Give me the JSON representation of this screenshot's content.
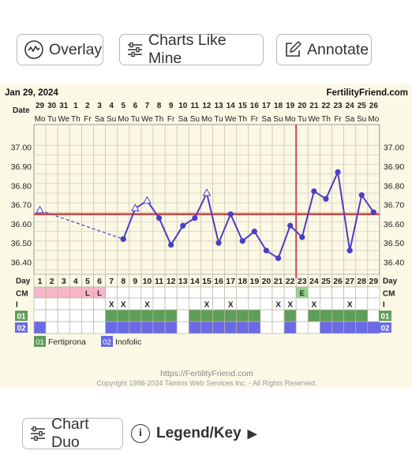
{
  "toolbar": {
    "overlay_label": "Overlay",
    "charts_like_mine_label": "Charts Like Mine",
    "annotate_label": "Annotate"
  },
  "chart": {
    "date_label": "Jan 29, 2024",
    "brand": "FertilityFriend.com",
    "row_date_label": "Date",
    "dates": [
      "29",
      "30",
      "31",
      "1",
      "2",
      "3",
      "4",
      "5",
      "6",
      "7",
      "8",
      "9",
      "10",
      "11",
      "12",
      "13",
      "14",
      "15",
      "16",
      "17",
      "18",
      "19",
      "20",
      "21",
      "22",
      "23",
      "24",
      "25",
      "26"
    ],
    "weekdays": [
      "Mo",
      "Tu",
      "We",
      "Th",
      "Fr",
      "Sa",
      "Su",
      "Mo",
      "Tu",
      "We",
      "Th",
      "Fr",
      "Sa",
      "Su",
      "Mo",
      "Tu",
      "We",
      "Th",
      "Fr",
      "Sa",
      "Su",
      "Mo",
      "Tu",
      "We",
      "Th",
      "Fr",
      "Sa",
      "Su",
      "Mo"
    ],
    "temp_ticks": [
      "37.00",
      "36.90",
      "36.80",
      "36.70",
      "36.60",
      "36.50",
      "36.40"
    ],
    "temp_range": [
      36.34,
      37.04
    ],
    "coverline": 36.65,
    "ovulation_day": 23,
    "temps": [
      36.67,
      null,
      null,
      null,
      null,
      null,
      null,
      36.52,
      36.68,
      36.72,
      36.63,
      36.49,
      36.59,
      36.63,
      36.76,
      36.5,
      36.65,
      36.51,
      36.56,
      36.46,
      36.42,
      36.59,
      36.53,
      36.77,
      36.73,
      36.87,
      36.46,
      36.75,
      36.66
    ],
    "temp_markers": [
      "triangle",
      "",
      "",
      "",
      "",
      "",
      "",
      "dot",
      "triangle",
      "triangle",
      "dot",
      "dot",
      "dot",
      "dot",
      "triangle",
      "dot",
      "dot",
      "dot",
      "dot",
      "dot",
      "dot",
      "dot",
      "dot",
      "dot",
      "dot",
      "dot",
      "dot",
      "dot",
      "dot"
    ],
    "row_day_label": "Day",
    "days": [
      "1",
      "2",
      "3",
      "4",
      "5",
      "6",
      "7",
      "8",
      "9",
      "10",
      "11",
      "12",
      "13",
      "14",
      "15",
      "16",
      "17",
      "18",
      "19",
      "20",
      "21",
      "22",
      "23",
      "24",
      "25",
      "26",
      "27",
      "28",
      "29"
    ],
    "row_cm_label": "CM",
    "cm": [
      "",
      "",
      "",
      "",
      "L",
      "L",
      "",
      "",
      "",
      "",
      "",
      "",
      "",
      "",
      "",
      "",
      "",
      "",
      "",
      "",
      "",
      "",
      "E",
      "",
      "",
      "",
      "",
      "",
      ""
    ],
    "row_i_label": "I",
    "intercourse": [
      "",
      "",
      "",
      "",
      "",
      "",
      "X",
      "X",
      "",
      "X",
      "",
      "",
      "",
      "",
      "X",
      "",
      "X",
      "",
      "",
      "",
      "X",
      "X",
      "",
      "X",
      "",
      "",
      "X",
      "",
      ""
    ],
    "row_01_label": "01",
    "row_02_label": "02",
    "med01": [
      0,
      0,
      0,
      0,
      0,
      0,
      1,
      1,
      1,
      1,
      1,
      1,
      0,
      1,
      1,
      1,
      1,
      1,
      1,
      0,
      0,
      1,
      0,
      1,
      1,
      1,
      1,
      1,
      0
    ],
    "med02": [
      1,
      0,
      0,
      0,
      0,
      0,
      1,
      1,
      1,
      1,
      1,
      1,
      0,
      1,
      1,
      1,
      1,
      1,
      1,
      0,
      0,
      1,
      0,
      0,
      1,
      1,
      1,
      1,
      1
    ],
    "legend": [
      {
        "code": "01",
        "name": "Fertiprona"
      },
      {
        "code": "02",
        "name": "Inofolic"
      }
    ],
    "footer_url": "https://FertilityFriend.com",
    "copyright": "Copyright 1998-2024 Tamtris Web Services Inc. - All Rights Reserved."
  },
  "colors": {
    "temp_line": "#4a3ec6",
    "coverline": "#cf4a4a",
    "med01": "#5f9e5a",
    "med02": "#6a6ae6",
    "cm_pink": "#f6b6c8",
    "cm_e": "#8fd18f"
  },
  "bottom": {
    "chart_duo_label": "Chart Duo",
    "info_glyph": "i",
    "legend_key_label": "Legend/Key",
    "legend_arrow": "▶"
  }
}
